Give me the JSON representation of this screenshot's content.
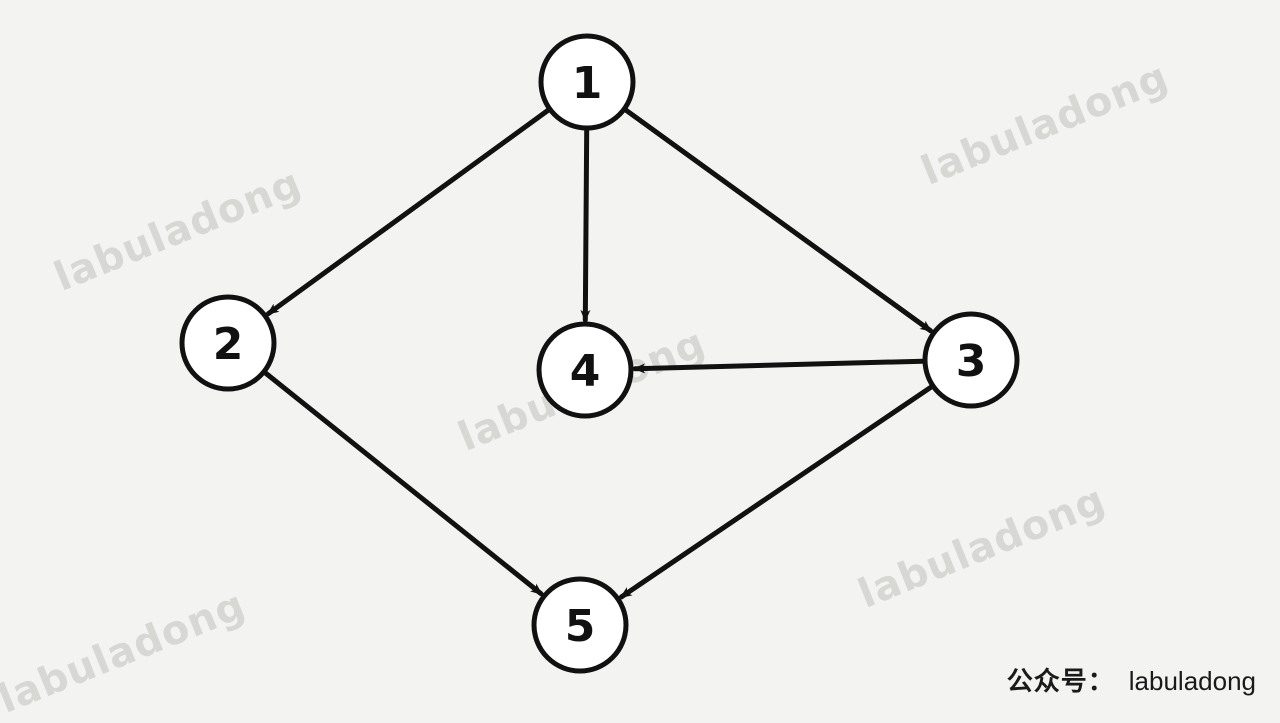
{
  "nodes": [
    {
      "id": "1",
      "label": "1"
    },
    {
      "id": "2",
      "label": "2"
    },
    {
      "id": "3",
      "label": "3"
    },
    {
      "id": "4",
      "label": "4"
    },
    {
      "id": "5",
      "label": "5"
    }
  ],
  "edges": [
    {
      "from": "1",
      "to": "2"
    },
    {
      "from": "1",
      "to": "4"
    },
    {
      "from": "1",
      "to": "3"
    },
    {
      "from": "3",
      "to": "4"
    },
    {
      "from": "2",
      "to": "5"
    },
    {
      "from": "3",
      "to": "5"
    }
  ],
  "watermark": "labuladong",
  "credit": {
    "prefix": "公众号：",
    "name": "labuladong"
  },
  "colors": {
    "background": "#f3f3f1",
    "stroke": "#111111",
    "watermark": "#d7d7d4"
  }
}
